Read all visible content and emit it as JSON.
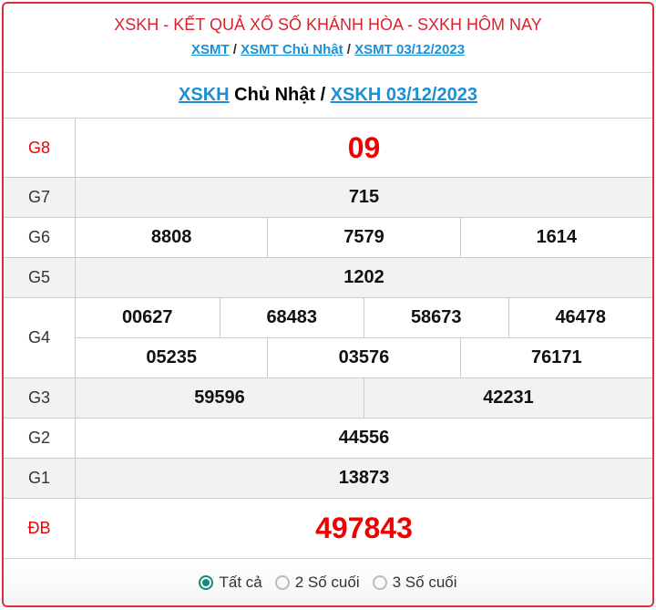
{
  "header": {
    "title": "XSKH - KẾT QUẢ XỔ SỐ KHÁNH HÒA - SXKH HÔM NAY",
    "links": [
      "XSMT",
      "XSMT Chủ Nhật",
      "XSMT 03/12/2023"
    ],
    "sep": "/"
  },
  "subtitle": {
    "link1": "XSKH",
    "text": " Chủ Nhật / ",
    "link2": "XSKH 03/12/2023"
  },
  "prizes": [
    {
      "label": "G8",
      "lines": [
        [
          "09"
        ]
      ]
    },
    {
      "label": "G7",
      "lines": [
        [
          "715"
        ]
      ]
    },
    {
      "label": "G6",
      "lines": [
        [
          "8808",
          "7579",
          "1614"
        ]
      ]
    },
    {
      "label": "G5",
      "lines": [
        [
          "1202"
        ]
      ]
    },
    {
      "label": "G4",
      "lines": [
        [
          "00627",
          "68483",
          "58673",
          "46478"
        ],
        [
          "05235",
          "03576",
          "76171"
        ]
      ]
    },
    {
      "label": "G3",
      "lines": [
        [
          "59596",
          "42231"
        ]
      ]
    },
    {
      "label": "G2",
      "lines": [
        [
          "44556"
        ]
      ]
    },
    {
      "label": "G1",
      "lines": [
        [
          "13873"
        ]
      ]
    },
    {
      "label": "ĐB",
      "lines": [
        [
          "497843"
        ]
      ]
    }
  ],
  "filter": {
    "options": [
      "Tất cả",
      "2 Số cuối",
      "3 Số cuối"
    ],
    "selected": 0
  },
  "colors": {
    "accent": "#d9232f",
    "link": "#1a8fd6",
    "radio": "#16897c"
  }
}
